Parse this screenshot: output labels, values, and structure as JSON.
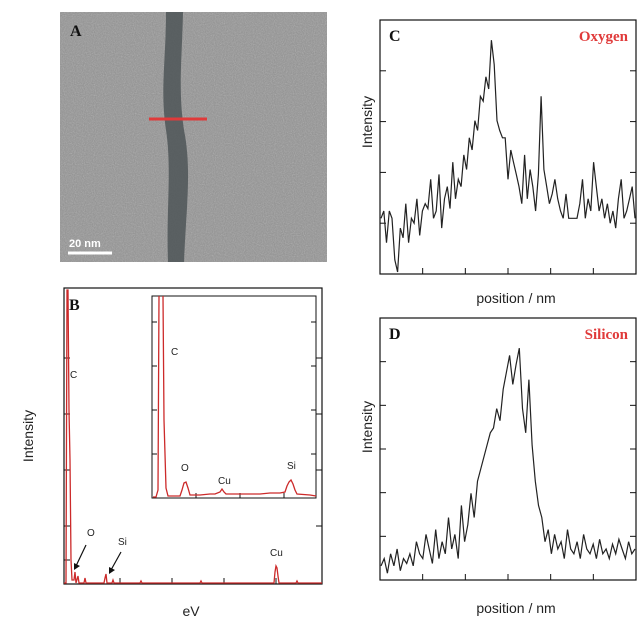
{
  "figure": {
    "panelA": {
      "label": "A",
      "scalebar": "20 nm"
    },
    "panelB": {
      "label": "B",
      "ylabel": "Intensity",
      "xlabel": "eV",
      "peaks": {
        "c": "C",
        "o": "O",
        "si": "Si",
        "cu": "Cu"
      },
      "inset_peaks": {
        "c": "C",
        "o": "O",
        "cu": "Cu",
        "si": "Si"
      }
    },
    "panelC": {
      "label": "C",
      "element": "Oxygen",
      "ylabel": "Intensity",
      "xlabel": "position / nm"
    },
    "panelD": {
      "label": "D",
      "element": "Silicon",
      "ylabel": "Intensity",
      "xlabel": "position / nm"
    }
  },
  "colors": {
    "accent": "#e03a3a",
    "trace": "#222222",
    "edx": "#cc2a2a"
  },
  "chart_data": [
    {
      "type": "line",
      "panel": "B",
      "ylabel": "Intensity",
      "xlabel": "eV",
      "series": [
        {
          "x": [
            0,
            5,
            8,
            12,
            15,
            20,
            25,
            35,
            45,
            50,
            60,
            80,
            100,
            120,
            150,
            180,
            200,
            205,
            210,
            215,
            220,
            230,
            255
          ],
          "values": [
            2,
            300,
            100,
            5,
            3,
            12,
            3,
            2,
            20,
            4,
            2,
            2,
            2,
            2,
            2,
            2,
            2,
            20,
            5,
            3,
            2,
            2,
            2
          ]
        }
      ]
    },
    {
      "type": "line",
      "panel": "C",
      "ylabel": "Intensity",
      "xlabel": "position / nm",
      "series": [
        {
          "values": [
            0.22,
            0.25,
            0.12,
            0.25,
            0.22,
            0.05,
            0.0,
            0.18,
            0.14,
            0.28,
            0.12,
            0.22,
            0.2,
            0.3,
            0.15,
            0.25,
            0.28,
            0.26,
            0.38,
            0.22,
            0.25,
            0.4,
            0.18,
            0.3,
            0.35,
            0.26,
            0.45,
            0.3,
            0.38,
            0.35,
            0.48,
            0.42,
            0.55,
            0.5,
            0.62,
            0.58,
            0.72,
            0.7,
            0.8,
            0.75,
            0.95,
            0.85,
            0.62,
            0.58,
            0.55,
            0.55,
            0.38,
            0.5,
            0.45,
            0.4,
            0.35,
            0.28,
            0.48,
            0.3,
            0.42,
            0.35,
            0.25,
            0.4,
            0.72,
            0.42,
            0.35,
            0.28,
            0.32,
            0.38,
            0.3,
            0.25,
            0.22,
            0.32,
            0.22,
            0.22,
            0.22,
            0.22,
            0.28,
            0.38,
            0.22,
            0.3,
            0.25,
            0.45,
            0.35,
            0.25,
            0.3,
            0.22,
            0.28,
            0.2,
            0.25,
            0.18,
            0.3,
            0.38,
            0.22,
            0.25,
            0.3,
            0.35,
            0.22
          ]
        }
      ]
    },
    {
      "type": "line",
      "panel": "D",
      "ylabel": "Intensity",
      "xlabel": "position / nm",
      "series": [
        {
          "values": [
            0.05,
            0.08,
            0.02,
            0.1,
            0.05,
            0.12,
            0.03,
            0.08,
            0.06,
            0.1,
            0.05,
            0.15,
            0.1,
            0.08,
            0.18,
            0.12,
            0.06,
            0.2,
            0.08,
            0.15,
            0.1,
            0.25,
            0.12,
            0.18,
            0.08,
            0.3,
            0.15,
            0.22,
            0.35,
            0.25,
            0.4,
            0.45,
            0.5,
            0.55,
            0.6,
            0.62,
            0.7,
            0.65,
            0.78,
            0.85,
            0.92,
            0.8,
            0.88,
            0.95,
            0.7,
            0.6,
            0.82,
            0.55,
            0.4,
            0.3,
            0.25,
            0.15,
            0.2,
            0.1,
            0.18,
            0.12,
            0.15,
            0.08,
            0.2,
            0.12,
            0.1,
            0.15,
            0.08,
            0.18,
            0.12,
            0.1,
            0.14,
            0.08,
            0.16,
            0.1,
            0.12,
            0.08,
            0.14,
            0.1,
            0.16,
            0.12,
            0.08,
            0.15,
            0.1,
            0.12
          ]
        }
      ]
    }
  ]
}
